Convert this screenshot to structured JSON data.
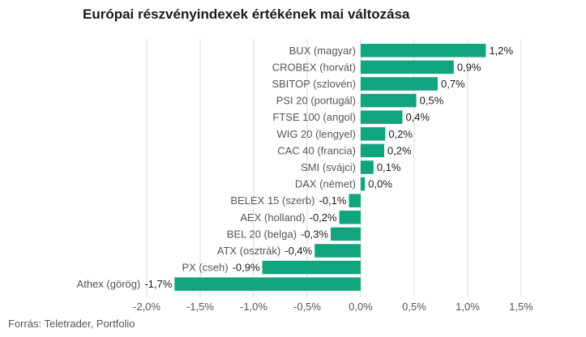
{
  "chart_data": {
    "type": "bar",
    "orientation": "horizontal",
    "title": "Európai részvényindexek értékének mai változása",
    "source": "Forrás: Teletrader, Portfolio",
    "categories": [
      "BUX (magyar)",
      "CROBEX (horvát)",
      "SBITOP (szlovén)",
      "PSI 20 (portugál)",
      "FTSE 100 (angol)",
      "WIG 20 (lengyel)",
      "CAC 40 (francia)",
      "SMI (svájci)",
      "DAX (német)",
      "BELEX 15 (szerb)",
      "AEX (holland)",
      "BEL 20 (belga)",
      "ATX (osztrák)",
      "PX (cseh)",
      "Athex (görög)"
    ],
    "values": [
      1.17,
      0.87,
      0.72,
      0.52,
      0.39,
      0.23,
      0.22,
      0.12,
      0.04,
      -0.11,
      -0.2,
      -0.28,
      -0.43,
      -0.92,
      -1.74
    ],
    "value_labels": [
      "1,2%",
      "0,9%",
      "0,7%",
      "0,5%",
      "0,4%",
      "0,2%",
      "0,2%",
      "0,1%",
      "0,0%",
      "-0,1%",
      "-0,2%",
      "-0,3%",
      "-0,4%",
      "-0,9%",
      "-1,7%"
    ],
    "xlim": [
      -2.0,
      1.5
    ],
    "xticks": [
      -2.0,
      -1.5,
      -1.0,
      -0.5,
      0.0,
      0.5,
      1.0,
      1.5
    ],
    "xtick_labels": [
      "-2,0%",
      "-1,5%",
      "-1,0%",
      "-0,5%",
      "0,0%",
      "0,5%",
      "1,0%",
      "1,5%"
    ],
    "grid": "vertical",
    "colors": {
      "bar": "#12a37f",
      "grid": "#d9d9d9"
    }
  }
}
